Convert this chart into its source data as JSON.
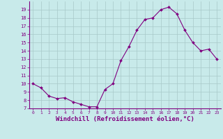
{
  "x": [
    0,
    1,
    2,
    3,
    4,
    5,
    6,
    7,
    8,
    9,
    10,
    11,
    12,
    13,
    14,
    15,
    16,
    17,
    18,
    19,
    20,
    21,
    22,
    23
  ],
  "y": [
    10,
    9.5,
    8.5,
    8.2,
    8.3,
    7.8,
    7.5,
    7.2,
    7.2,
    9.3,
    10.0,
    12.8,
    14.5,
    16.5,
    17.8,
    18.0,
    19.0,
    19.3,
    18.5,
    16.5,
    15.0,
    14.0,
    14.2,
    13.0
  ],
  "line_color": "#800080",
  "marker": "D",
  "marker_size": 2.0,
  "xlabel": "Windchill (Refroidissement éolien,°C)",
  "xlabel_color": "#800080",
  "bg_color": "#c8eaea",
  "grid_color": "#a8c8c8",
  "tick_color": "#800080",
  "spine_color": "#800080",
  "ylim": [
    7,
    20
  ],
  "xlim": [
    -0.5,
    23.5
  ],
  "yticks": [
    7,
    8,
    9,
    10,
    11,
    12,
    13,
    14,
    15,
    16,
    17,
    18,
    19
  ],
  "xticks": [
    0,
    1,
    2,
    3,
    4,
    5,
    6,
    7,
    8,
    9,
    10,
    11,
    12,
    13,
    14,
    15,
    16,
    17,
    18,
    19,
    20,
    21,
    22,
    23
  ],
  "font_family": "monospace",
  "tick_fontsize": 5.5,
  "xlabel_fontsize": 6.5
}
